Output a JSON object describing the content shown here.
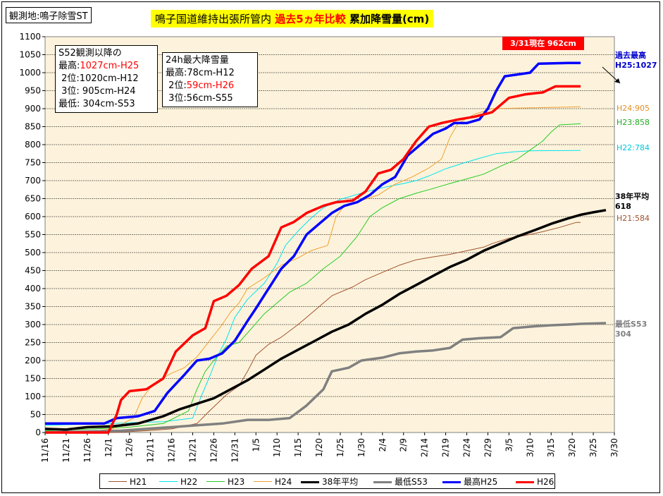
{
  "station_label": "観測地:鳴子除雪ST",
  "title": {
    "part1": "鳴子国道維持出張所管内",
    "part2": "過去5ヵ年比較",
    "part3": "累加降雪量(cm)"
  },
  "records_box": {
    "heading": "S52観測以降の",
    "lines": [
      {
        "label": "最高:",
        "value": "1027cm-H25",
        "color": "#ff0000"
      },
      {
        "label": "2位:",
        "value": "1020cm-H12",
        "color": "#000000"
      },
      {
        "label": "3位:",
        "value": " 905cm-H24",
        "color": "#000000"
      },
      {
        "label": "最低:",
        "value": " 304cm-S53",
        "color": "#000000"
      }
    ]
  },
  "max24h_box": {
    "heading": "24h最大降雪量",
    "lines": [
      {
        "label": "最高:",
        "value": "78cm-H12",
        "color": "#000000"
      },
      {
        "label": "2位:",
        "value": "59cm-H26",
        "color": "#ff0000"
      },
      {
        "label": "3位:",
        "value": "56cm-S55",
        "color": "#000000"
      }
    ]
  },
  "callout": "3/31現在 962cm",
  "chart_data": {
    "type": "line",
    "y_range": [
      0,
      1100
    ],
    "y_ticks": [
      0,
      50,
      100,
      150,
      200,
      250,
      300,
      350,
      400,
      450,
      500,
      550,
      600,
      650,
      700,
      750,
      800,
      850,
      900,
      950,
      1000,
      1050,
      1100
    ],
    "x_ticks": [
      "11/16",
      "11/21",
      "11/26",
      "12/1",
      "12/6",
      "12/11",
      "12/16",
      "12/21",
      "12/26",
      "12/31",
      "1/5",
      "1/10",
      "1/15",
      "1/20",
      "1/25",
      "1/30",
      "2/4",
      "2/9",
      "2/14",
      "2/19",
      "2/24",
      "2/29",
      "3/5",
      "3/10",
      "3/15",
      "3/20",
      "3/25",
      "3/30"
    ],
    "grid": "horizontal",
    "legend_position": "bottom",
    "series": [
      {
        "name": "H21",
        "color": "#a0522d",
        "width": 1,
        "end_label": "H21:584",
        "points": [
          [
            0,
            0
          ],
          [
            16,
            0
          ],
          [
            24,
            5
          ],
          [
            30,
            10
          ],
          [
            36,
            25
          ],
          [
            39,
            60
          ],
          [
            43,
            105
          ],
          [
            46,
            130
          ],
          [
            48,
            170
          ],
          [
            50,
            215
          ],
          [
            53,
            245
          ],
          [
            56,
            265
          ],
          [
            60,
            300
          ],
          [
            64,
            340
          ],
          [
            68,
            380
          ],
          [
            73,
            405
          ],
          [
            76,
            425
          ],
          [
            80,
            445
          ],
          [
            84,
            465
          ],
          [
            88,
            480
          ],
          [
            92,
            488
          ],
          [
            96,
            495
          ],
          [
            100,
            505
          ],
          [
            104,
            515
          ],
          [
            106,
            525
          ],
          [
            110,
            540
          ],
          [
            114,
            548
          ],
          [
            118,
            558
          ],
          [
            122,
            570
          ],
          [
            126,
            584
          ],
          [
            127,
            584
          ]
        ]
      },
      {
        "name": "H22",
        "color": "#00e5ee",
        "width": 1,
        "end_label": "H22:784",
        "points": [
          [
            0,
            20
          ],
          [
            16,
            25
          ],
          [
            22,
            28
          ],
          [
            28,
            30
          ],
          [
            35,
            40
          ],
          [
            37,
            100
          ],
          [
            39,
            155
          ],
          [
            41,
            215
          ],
          [
            43,
            260
          ],
          [
            45,
            320
          ],
          [
            48,
            370
          ],
          [
            52,
            415
          ],
          [
            55,
            470
          ],
          [
            57,
            520
          ],
          [
            60,
            560
          ],
          [
            63,
            595
          ],
          [
            66,
            625
          ],
          [
            70,
            648
          ],
          [
            73,
            658
          ],
          [
            77,
            672
          ],
          [
            81,
            683
          ],
          [
            85,
            692
          ],
          [
            88,
            700
          ],
          [
            91,
            713
          ],
          [
            95,
            733
          ],
          [
            99,
            748
          ],
          [
            103,
            762
          ],
          [
            107,
            775
          ],
          [
            111,
            780
          ],
          [
            115,
            783
          ],
          [
            127,
            784
          ]
        ]
      },
      {
        "name": "H23",
        "color": "#22cc22",
        "width": 1,
        "end_label": "H23:858",
        "points": [
          [
            0,
            5
          ],
          [
            12,
            10
          ],
          [
            20,
            15
          ],
          [
            28,
            25
          ],
          [
            34,
            60
          ],
          [
            36,
            120
          ],
          [
            38,
            170
          ],
          [
            40,
            200
          ],
          [
            43,
            240
          ],
          [
            46,
            250
          ],
          [
            49,
            290
          ],
          [
            52,
            330
          ],
          [
            55,
            360
          ],
          [
            58,
            390
          ],
          [
            62,
            415
          ],
          [
            66,
            455
          ],
          [
            70,
            490
          ],
          [
            74,
            545
          ],
          [
            77,
            600
          ],
          [
            80,
            625
          ],
          [
            84,
            650
          ],
          [
            88,
            665
          ],
          [
            92,
            678
          ],
          [
            96,
            692
          ],
          [
            100,
            705
          ],
          [
            104,
            718
          ],
          [
            108,
            740
          ],
          [
            112,
            760
          ],
          [
            115,
            785
          ],
          [
            118,
            810
          ],
          [
            120,
            835
          ],
          [
            122,
            855
          ],
          [
            127,
            858
          ]
        ]
      },
      {
        "name": "H24",
        "color": "#f0a030",
        "width": 1,
        "end_label": "H24:905",
        "points": [
          [
            0,
            0
          ],
          [
            10,
            2
          ],
          [
            16,
            10
          ],
          [
            21,
            40
          ],
          [
            23,
            95
          ],
          [
            25,
            125
          ],
          [
            27,
            145
          ],
          [
            30,
            165
          ],
          [
            33,
            180
          ],
          [
            36,
            210
          ],
          [
            38,
            240
          ],
          [
            40,
            270
          ],
          [
            42,
            300
          ],
          [
            44,
            335
          ],
          [
            46,
            360
          ],
          [
            48,
            400
          ],
          [
            52,
            430
          ],
          [
            56,
            465
          ],
          [
            60,
            485
          ],
          [
            63,
            505
          ],
          [
            67,
            520
          ],
          [
            69,
            600
          ],
          [
            71,
            630
          ],
          [
            75,
            645
          ],
          [
            79,
            660
          ],
          [
            83,
            690
          ],
          [
            87,
            710
          ],
          [
            91,
            735
          ],
          [
            94,
            760
          ],
          [
            96,
            820
          ],
          [
            98,
            860
          ],
          [
            102,
            885
          ],
          [
            106,
            900
          ],
          [
            127,
            905
          ]
        ]
      },
      {
        "name": "38年平均",
        "color": "#000000",
        "width": 3.5,
        "end_label": "38年平均\n618",
        "points": [
          [
            0,
            10
          ],
          [
            5,
            8
          ],
          [
            10,
            15
          ],
          [
            16,
            17
          ],
          [
            22,
            25
          ],
          [
            28,
            45
          ],
          [
            32,
            65
          ],
          [
            36,
            80
          ],
          [
            40,
            95
          ],
          [
            44,
            120
          ],
          [
            48,
            145
          ],
          [
            52,
            175
          ],
          [
            56,
            205
          ],
          [
            60,
            230
          ],
          [
            64,
            255
          ],
          [
            68,
            280
          ],
          [
            72,
            300
          ],
          [
            76,
            330
          ],
          [
            80,
            355
          ],
          [
            84,
            385
          ],
          [
            88,
            410
          ],
          [
            92,
            435
          ],
          [
            96,
            460
          ],
          [
            100,
            480
          ],
          [
            104,
            505
          ],
          [
            108,
            525
          ],
          [
            112,
            545
          ],
          [
            116,
            562
          ],
          [
            120,
            580
          ],
          [
            124,
            595
          ],
          [
            127,
            605
          ],
          [
            130,
            612
          ],
          [
            133,
            618
          ]
        ]
      },
      {
        "name": "最低S53",
        "color": "#808080",
        "width": 3.5,
        "end_label": "最低S53\n304",
        "points": [
          [
            0,
            0
          ],
          [
            18,
            5
          ],
          [
            24,
            10
          ],
          [
            30,
            15
          ],
          [
            36,
            20
          ],
          [
            42,
            25
          ],
          [
            48,
            35
          ],
          [
            53,
            35
          ],
          [
            58,
            40
          ],
          [
            62,
            75
          ],
          [
            66,
            120
          ],
          [
            68,
            170
          ],
          [
            72,
            180
          ],
          [
            75,
            200
          ],
          [
            80,
            208
          ],
          [
            84,
            220
          ],
          [
            88,
            225
          ],
          [
            92,
            228
          ],
          [
            96,
            235
          ],
          [
            99,
            258
          ],
          [
            103,
            262
          ],
          [
            108,
            265
          ],
          [
            111,
            290
          ],
          [
            116,
            295
          ],
          [
            120,
            298
          ],
          [
            124,
            300
          ],
          [
            127,
            302
          ],
          [
            133,
            304
          ]
        ]
      },
      {
        "name": "最高H25",
        "color": "#0000ff",
        "width": 3.5,
        "end_label": "過去最高\nH25:1027",
        "points": [
          [
            0,
            25
          ],
          [
            8,
            25
          ],
          [
            14,
            25
          ],
          [
            17,
            40
          ],
          [
            22,
            45
          ],
          [
            26,
            60
          ],
          [
            29,
            110
          ],
          [
            33,
            160
          ],
          [
            36,
            200
          ],
          [
            39,
            205
          ],
          [
            42,
            220
          ],
          [
            45,
            255
          ],
          [
            48,
            310
          ],
          [
            50,
            345
          ],
          [
            53,
            400
          ],
          [
            56,
            455
          ],
          [
            59,
            490
          ],
          [
            62,
            550
          ],
          [
            65,
            580
          ],
          [
            68,
            610
          ],
          [
            71,
            630
          ],
          [
            74,
            640
          ],
          [
            77,
            660
          ],
          [
            80,
            690
          ],
          [
            83,
            710
          ],
          [
            86,
            770
          ],
          [
            89,
            800
          ],
          [
            92,
            830
          ],
          [
            95,
            845
          ],
          [
            97,
            860
          ],
          [
            100,
            860
          ],
          [
            103,
            870
          ],
          [
            105,
            900
          ],
          [
            107,
            950
          ],
          [
            109,
            990
          ],
          [
            112,
            995
          ],
          [
            115,
            1000
          ],
          [
            117,
            1025
          ],
          [
            124,
            1027
          ],
          [
            127,
            1027
          ]
        ]
      },
      {
        "name": "H26",
        "color": "#ff0000",
        "width": 3.5,
        "end_label": "",
        "points": [
          [
            0,
            0
          ],
          [
            9,
            0
          ],
          [
            15,
            0
          ],
          [
            17,
            50
          ],
          [
            18,
            90
          ],
          [
            20,
            115
          ],
          [
            24,
            120
          ],
          [
            28,
            150
          ],
          [
            31,
            225
          ],
          [
            35,
            270
          ],
          [
            38,
            290
          ],
          [
            40,
            365
          ],
          [
            43,
            380
          ],
          [
            46,
            410
          ],
          [
            49,
            455
          ],
          [
            53,
            490
          ],
          [
            56,
            570
          ],
          [
            59,
            585
          ],
          [
            62,
            610
          ],
          [
            66,
            630
          ],
          [
            69,
            640
          ],
          [
            73,
            645
          ],
          [
            76,
            670
          ],
          [
            79,
            720
          ],
          [
            82,
            730
          ],
          [
            85,
            760
          ],
          [
            88,
            810
          ],
          [
            91,
            850
          ],
          [
            94,
            860
          ],
          [
            98,
            870
          ],
          [
            102,
            878
          ],
          [
            106,
            890
          ],
          [
            110,
            930
          ],
          [
            114,
            940
          ],
          [
            118,
            945
          ],
          [
            121,
            962
          ],
          [
            127,
            962
          ]
        ]
      }
    ]
  }
}
